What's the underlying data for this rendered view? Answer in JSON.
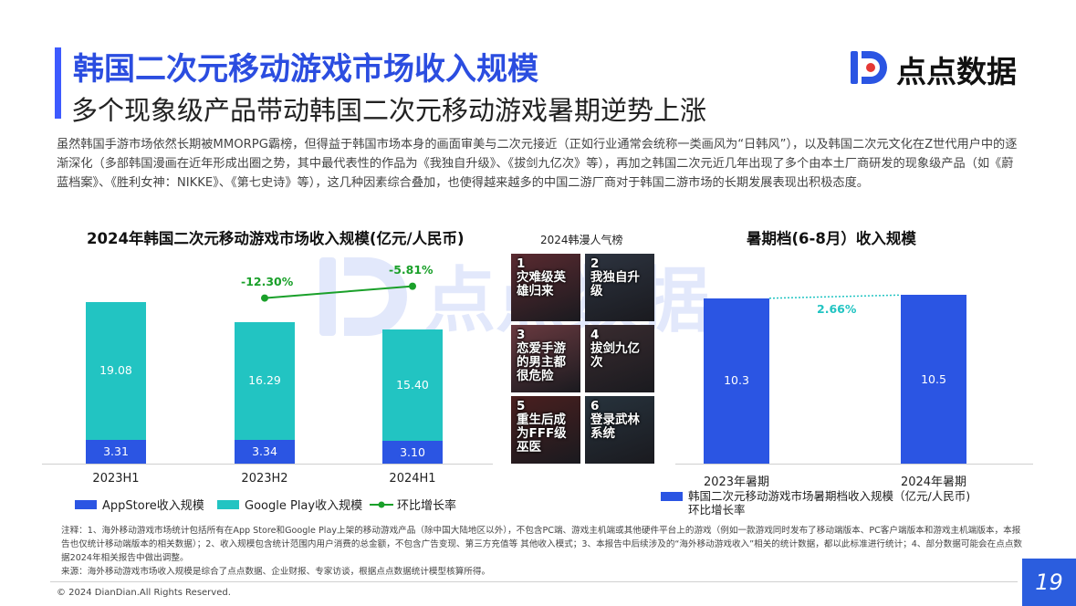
{
  "header": {
    "title": "韩国二次元移动游戏市场收入规模",
    "subtitle": "多个现象级产品带动韩国二次元移动游戏暑期逆势上涨",
    "logo_text": "点点数据"
  },
  "intro": "虽然韩国手游市场依然长期被MMORPG霸榜，但得益于韩国市场本身的画面审美与二次元接近（正如行业通常会统称一类画风为“日韩风”），以及韩国二次元文化在Z世代用户中的逐渐深化（多部韩国漫画在近年形成出圈之势，其中最代表性的作品为《我独自升级》、《拔剑九亿次》等），再加之韩国二次元近几年出现了多个由本土厂商研发的现象级产品（如《蔚蓝档案》、《胜利女神：NIKKE》、《第七史诗》等），这几种因素综合叠加，也使得越来越多的中国二游厂商对于韩国二游市场的长期发展表现出积极态度。",
  "chart_data": [
    {
      "type": "bar",
      "title": "2024年韩国二次元移动游戏市场收入规模(亿元/人民币)",
      "categories": [
        "2023H1",
        "2023H2",
        "2024H1"
      ],
      "stacked": true,
      "series": [
        {
          "name": "AppStore收入规模",
          "values": [
            3.31,
            3.34,
            3.1
          ],
          "labels": [
            "3.31",
            "3.34",
            "3.10"
          ],
          "color": "#2b55e3"
        },
        {
          "name": "Google Play收入规模",
          "values": [
            19.08,
            16.29,
            15.4
          ],
          "labels": [
            "19.08",
            "16.29",
            "15.40"
          ],
          "color": "#22c4c2"
        }
      ],
      "line_series": {
        "name": "环比增长率",
        "values": [
          null,
          -12.3,
          -5.81
        ],
        "labels": [
          "",
          "-12.30%",
          "-5.81%"
        ],
        "color": "#1aa02a"
      },
      "ylim": [
        0,
        25
      ],
      "legend": "bottom"
    },
    {
      "type": "bar",
      "title": "暑期档(6-8月）收入规模",
      "categories": [
        "2023年暑期",
        "2024年暑期"
      ],
      "series": [
        {
          "name": "韩国二次元移动游戏市场暑期档收入规模（亿元/人民币)",
          "values": [
            10.3,
            10.5
          ],
          "labels": [
            "10.3",
            "10.5"
          ],
          "color": "#2b55e3"
        }
      ],
      "line_series": {
        "name": "环比增长率",
        "values": [
          2.66
        ],
        "labels": [
          "2.66%"
        ],
        "color": "#22c4c2"
      },
      "ylim": [
        0,
        10.8
      ],
      "legend": "bottom"
    }
  ],
  "ranking": {
    "title": "2024韩漫人气榜",
    "items": [
      {
        "text": "1\n灾难级英\n雄归来",
        "bg": "#5a2a30"
      },
      {
        "text": "2\n我独自升\n级",
        "bg": "#2d3440"
      },
      {
        "text": "3\n恋爱手游\n的男主都\n很危险",
        "bg": "#6a3a40"
      },
      {
        "text": "4\n拔剑九亿\n次",
        "bg": "#3a2c30"
      },
      {
        "text": "5\n重生后成\n为FFF级\n巫医",
        "bg": "#4a1f1f"
      },
      {
        "text": "6\n登录武林\n系统",
        "bg": "#27333d"
      }
    ]
  },
  "notes": {
    "note1": "注释：1、海外移动游戏市场统计包括所有在App Store和Google Play上架的移动游戏产品（除中国大陆地区以外），不包含PC端、游戏主机端或其他硬件平台上的游戏（例如一款游戏同时发布了移动端版本、PC客户端版本和游戏主机端版本，本报告也仅统计移动端版本的相关数据）；2、收入规模包含统计范围内用户消费的总金额，不包含广告变现、第三方充值等 其他收入模式；3、本报告中后续涉及的“海外移动游戏收入”相关的统计数据，都以此标准进行统计；4、部分数据可能会在点点数据2024年相关报告中做出调整。",
    "source": "来源：海外移动游戏市场收入规模是综合了点点数据、企业财报、专家访谈，根据点点数据统计模型核算所得。"
  },
  "footer": {
    "copyright": "© 2024 DianDian.All Rights Reserved.",
    "page": "19"
  }
}
